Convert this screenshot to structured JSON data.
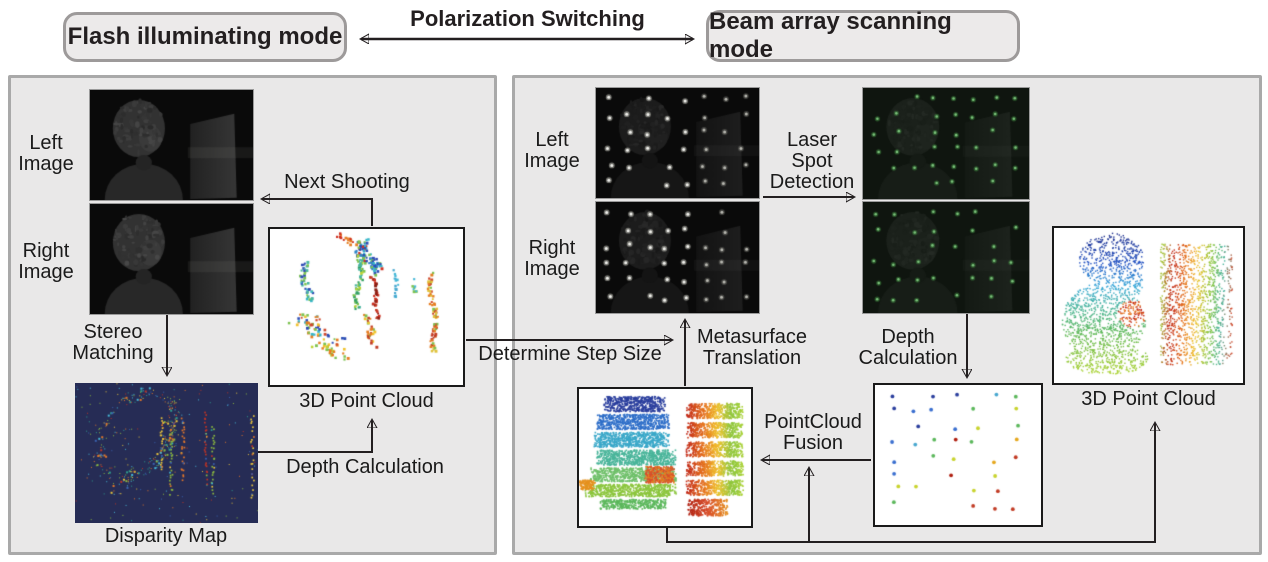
{
  "figure": {
    "flash_mode_title": "Flash illuminating mode",
    "beam_mode_title": "Beam array scanning mode",
    "switch_label": "Polarization Switching",
    "determine_step_size": "Determine Step Size"
  },
  "flash_panel": {
    "left_image": [
      "Left",
      "Image"
    ],
    "right_image": [
      "Right",
      "Image"
    ],
    "next_shooting": "Next Shooting",
    "stereo_matching": [
      "Stereo",
      "Matching"
    ],
    "point_cloud": "3D Point Cloud",
    "depth_calculation": "Depth Calculation",
    "disparity_map": "Disparity Map"
  },
  "beam_panel": {
    "left_image": [
      "Left",
      "Image"
    ],
    "right_image": [
      "Right",
      "Image"
    ],
    "laser_spot_detection": [
      "Laser",
      "Spot",
      "Detection"
    ],
    "metasurface_translation": [
      "Metasurface",
      "Translation"
    ],
    "depth_calculation": [
      "Depth",
      "Calculation"
    ],
    "pointcloud_fusion": [
      "PointCloud",
      "Fusion"
    ],
    "point_cloud": "3D Point Cloud"
  },
  "colors": {
    "panel_bg": "#e9e8e8",
    "panel_border": "#a9a9a9",
    "mode_box_bg": "#eceaea",
    "mode_box_border": "#9d9a9a",
    "arrow": "#231f20",
    "text": "#1a1a1a",
    "pointcloud_box_border": "#1a1a1a",
    "disparity_bg": "#262c55",
    "laser_spot_green": "#7cc47c"
  }
}
